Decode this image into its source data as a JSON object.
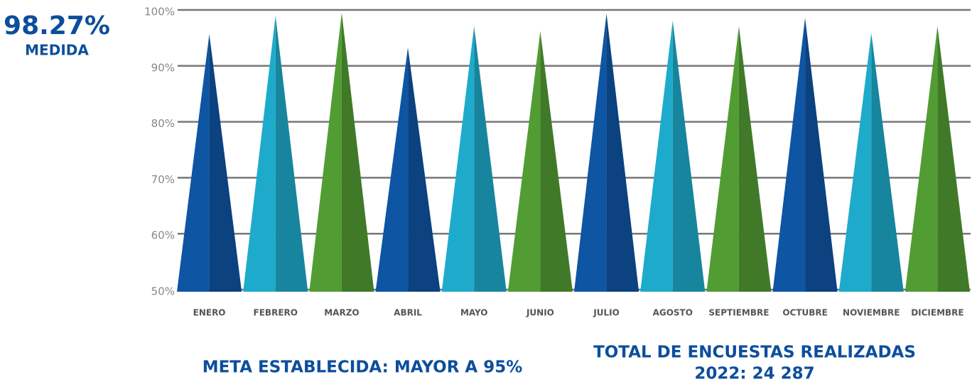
{
  "chart_data": {
    "type": "triangle-bar",
    "summary": {
      "value_text": "98.27%",
      "label": "MEDIDA"
    },
    "footer": {
      "goal": "META ESTABLECIDA: MAYOR A 95%",
      "total_line1": "TOTAL DE ENCUESTAS REALIZADAS",
      "total_line2": "2022: 24 287"
    },
    "categories": [
      "ENERO",
      "FEBRERO",
      "MARZO",
      "ABRIL",
      "MAYO",
      "JUNIO",
      "JULIO",
      "AGOSTO",
      "SEPTIEMBRE",
      "OCTUBRE",
      "NOVIEMBRE",
      "DICIEMBRE"
    ],
    "values": [
      95.7,
      99,
      99.5,
      93.3,
      97.1,
      96.2,
      99.4,
      98.1,
      97.1,
      98.6,
      95.9,
      97.1
    ],
    "colors": [
      "#0e55a3",
      "#1eabcb",
      "#529c34",
      "#0e55a3",
      "#1eabcb",
      "#529c34",
      "#0e55a3",
      "#1eabcb",
      "#529c34",
      "#0e55a3",
      "#1eabcb",
      "#529c34"
    ],
    "ylim": [
      50,
      100
    ],
    "yticks": [
      {
        "value": 50,
        "label": "50%"
      },
      {
        "value": 60,
        "label": "60%"
      },
      {
        "value": 70,
        "label": "70%"
      },
      {
        "value": 80,
        "label": "80%"
      },
      {
        "value": 90,
        "label": "90%"
      },
      {
        "value": 100,
        "label": "100%"
      }
    ],
    "grid": true
  }
}
